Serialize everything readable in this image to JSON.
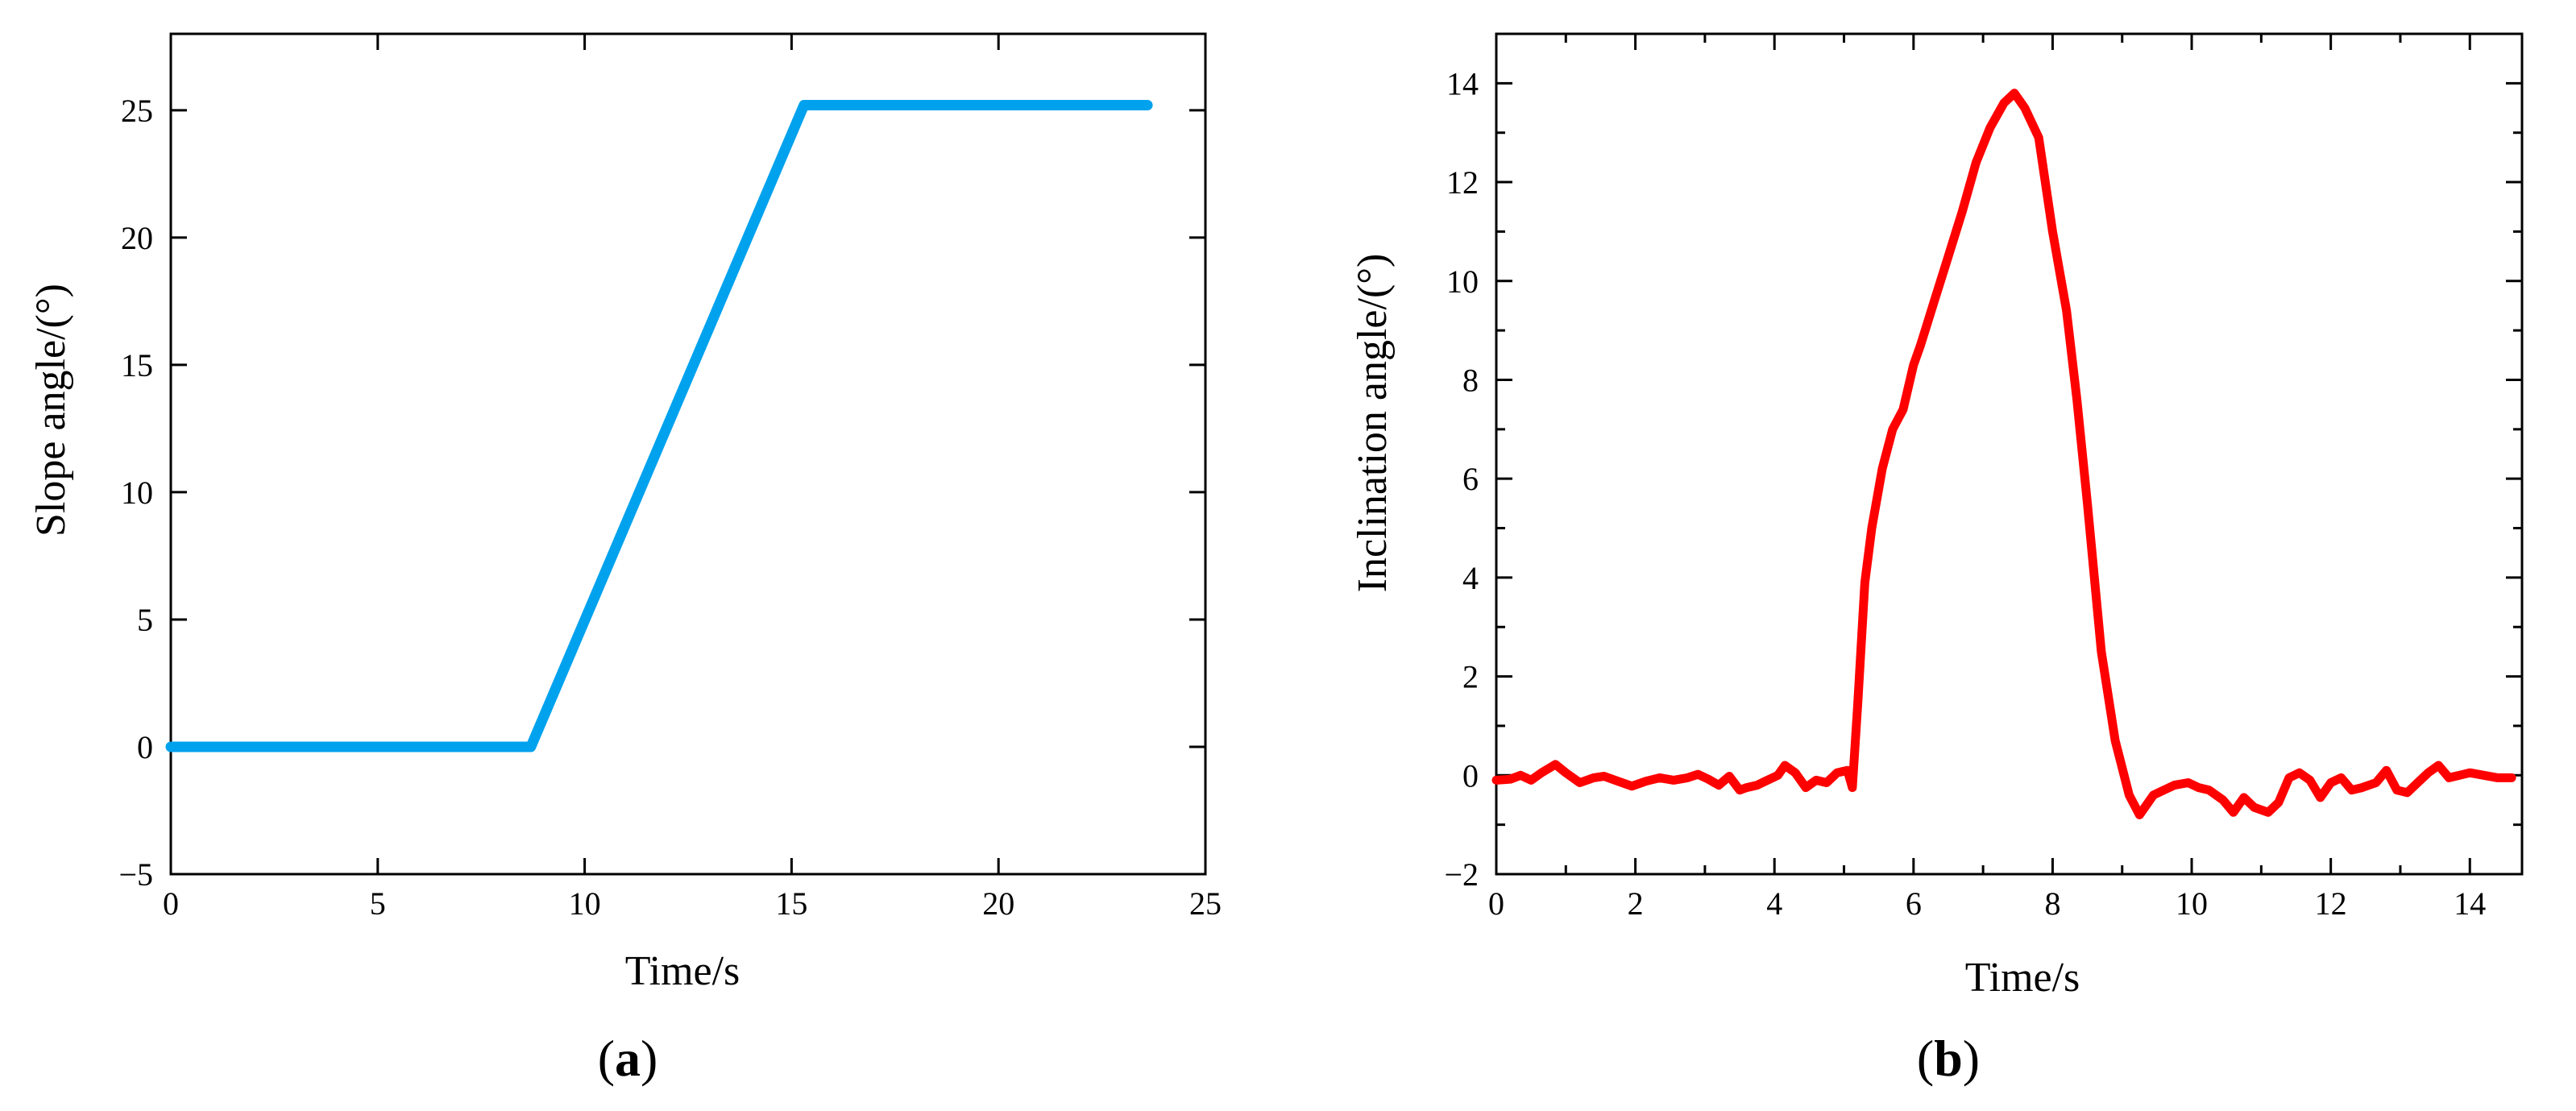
{
  "panels": [
    {
      "label_open": "(",
      "label_letter": "a",
      "label_close": ")"
    },
    {
      "label_open": "(",
      "label_letter": "b",
      "label_close": ")"
    }
  ],
  "chart_data": [
    {
      "type": "line",
      "xlabel": "Time/s",
      "ylabel": "Slope angle/(°)",
      "xlim": [
        0,
        25
      ],
      "ylim": [
        -5,
        28
      ],
      "xticks": [
        0,
        5,
        10,
        15,
        20,
        25
      ],
      "yticks": [
        -5,
        0,
        5,
        10,
        15,
        20,
        25
      ],
      "grid": false,
      "series": [
        {
          "color": "#00a2ee",
          "x": [
            0,
            8.7,
            15.3,
            23.6
          ],
          "y": [
            0,
            0,
            25.2,
            25.2
          ]
        }
      ]
    },
    {
      "type": "line",
      "xlabel": "Time/s",
      "ylabel": "Inclination angle/(°)",
      "xlim": [
        0,
        14.75
      ],
      "ylim": [
        -2,
        15
      ],
      "xticks": [
        0,
        2,
        4,
        6,
        8,
        10,
        12,
        14
      ],
      "yticks": [
        -2,
        0,
        2,
        4,
        6,
        8,
        10,
        12,
        14
      ],
      "grid": false,
      "series": [
        {
          "color": "#ff0000",
          "x": [
            0,
            0.2,
            0.35,
            0.5,
            0.65,
            0.85,
            1.0,
            1.2,
            1.4,
            1.55,
            1.75,
            1.95,
            2.15,
            2.35,
            2.55,
            2.75,
            2.9,
            3.05,
            3.2,
            3.35,
            3.5,
            3.6,
            3.75,
            3.9,
            4.05,
            4.15,
            4.3,
            4.45,
            4.6,
            4.75,
            4.9,
            5.05,
            5.12,
            5.2,
            5.3,
            5.4,
            5.55,
            5.7,
            5.85,
            6.0,
            6.1,
            6.3,
            6.5,
            6.7,
            6.9,
            7.1,
            7.3,
            7.45,
            7.6,
            7.8,
            8.0,
            8.2,
            8.35,
            8.5,
            8.7,
            8.9,
            9.1,
            9.25,
            9.35,
            9.45,
            9.6,
            9.75,
            9.95,
            10.1,
            10.25,
            10.45,
            10.6,
            10.75,
            10.9,
            11.1,
            11.25,
            11.4,
            11.55,
            11.7,
            11.85,
            12.0,
            12.15,
            12.3,
            12.45,
            12.65,
            12.8,
            12.95,
            13.1,
            13.25,
            13.4,
            13.55,
            13.7,
            13.85,
            14.0,
            14.2,
            14.4,
            14.6
          ],
          "y": [
            -0.1,
            -0.08,
            0.0,
            -0.1,
            0.05,
            0.22,
            0.05,
            -0.15,
            -0.05,
            -0.02,
            -0.12,
            -0.22,
            -0.12,
            -0.05,
            -0.1,
            -0.05,
            0.02,
            -0.08,
            -0.2,
            -0.02,
            -0.3,
            -0.25,
            -0.2,
            -0.1,
            0.0,
            0.2,
            0.05,
            -0.25,
            -0.1,
            -0.15,
            0.05,
            0.1,
            -0.25,
            1.5,
            3.9,
            5.0,
            6.2,
            7.0,
            7.4,
            8.3,
            8.7,
            9.6,
            10.5,
            11.4,
            12.4,
            13.1,
            13.6,
            13.8,
            13.5,
            12.9,
            11.0,
            9.4,
            7.6,
            5.5,
            2.5,
            0.7,
            -0.4,
            -0.8,
            -0.6,
            -0.4,
            -0.3,
            -0.2,
            -0.15,
            -0.25,
            -0.3,
            -0.5,
            -0.75,
            -0.45,
            -0.65,
            -0.75,
            -0.55,
            -0.05,
            0.05,
            -0.1,
            -0.45,
            -0.15,
            -0.05,
            -0.3,
            -0.25,
            -0.15,
            0.1,
            -0.3,
            -0.35,
            -0.15,
            0.05,
            0.2,
            -0.05,
            0.0,
            0.05,
            0.0,
            -0.05,
            -0.05
          ]
        }
      ]
    }
  ]
}
